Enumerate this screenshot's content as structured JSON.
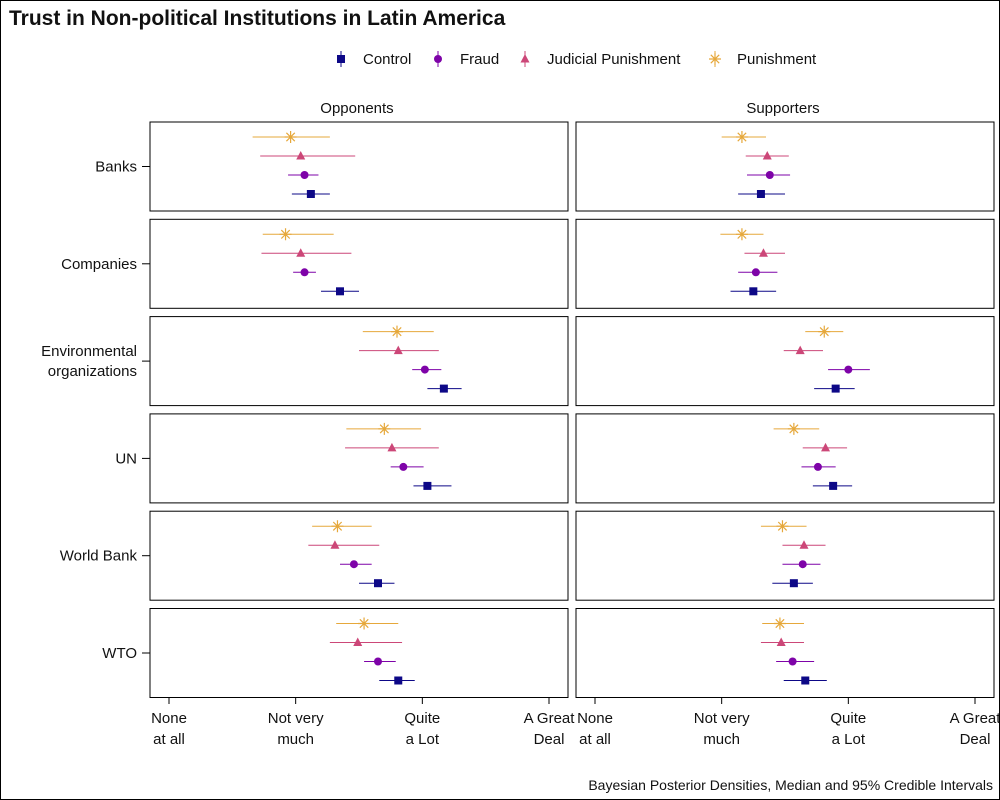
{
  "chart_data": {
    "type": "scatter",
    "title": "Trust in Non-political Institutions in Latin America",
    "caption": "Bayesian Posterior Densities, Median and 95% Credible Intervals",
    "facets": [
      "Opponents",
      "Supporters"
    ],
    "institutions": [
      "Banks",
      "Companies",
      "Environmental organizations",
      "UN",
      "World Bank",
      "WTO"
    ],
    "institution_labels": [
      [
        "Banks"
      ],
      [
        "Companies"
      ],
      [
        "Environmental",
        "organizations"
      ],
      [
        "UN"
      ],
      [
        "World Bank"
      ],
      [
        "WTO"
      ]
    ],
    "x_ticks": [
      {
        "value": 1,
        "lines": [
          "None",
          "at all"
        ]
      },
      {
        "value": 2,
        "lines": [
          "Not very",
          "much"
        ]
      },
      {
        "value": 3,
        "lines": [
          "Quite",
          "a Lot"
        ]
      },
      {
        "value": 4,
        "lines": [
          "A Great",
          "Deal"
        ]
      }
    ],
    "xlim": [
      0.85,
      4.15
    ],
    "legend_position": "top",
    "series": [
      {
        "name": "Control",
        "color": "#0d0887",
        "marker": "square"
      },
      {
        "name": "Fraud",
        "color": "#7e03a8",
        "marker": "circle"
      },
      {
        "name": "Judicial Punishment",
        "color": "#cc4778",
        "marker": "triangle"
      },
      {
        "name": "Punishment",
        "color": "#e6a83b",
        "marker": "asterisk"
      }
    ],
    "data": {
      "Opponents": {
        "Banks": {
          "Control": [
            2.12,
            1.97,
            2.27
          ],
          "Fraud": [
            2.07,
            1.94,
            2.18
          ],
          "Judicial Punishment": [
            2.04,
            1.72,
            2.47
          ],
          "Punishment": [
            1.96,
            1.66,
            2.27
          ]
        },
        "Companies": {
          "Control": [
            2.35,
            2.2,
            2.5
          ],
          "Fraud": [
            2.07,
            1.98,
            2.16
          ],
          "Judicial Punishment": [
            2.04,
            1.73,
            2.44
          ],
          "Punishment": [
            1.92,
            1.74,
            2.3
          ]
        },
        "Environmental organizations": {
          "Control": [
            3.17,
            3.04,
            3.31
          ],
          "Fraud": [
            3.02,
            2.92,
            3.15
          ],
          "Judicial Punishment": [
            2.81,
            2.5,
            3.13
          ],
          "Punishment": [
            2.8,
            2.53,
            3.09
          ]
        },
        "UN": {
          "Control": [
            3.04,
            2.93,
            3.23
          ],
          "Fraud": [
            2.85,
            2.75,
            3.01
          ],
          "Judicial Punishment": [
            2.76,
            2.39,
            3.13
          ],
          "Punishment": [
            2.7,
            2.4,
            2.99
          ]
        },
        "World Bank": {
          "Control": [
            2.65,
            2.5,
            2.78
          ],
          "Fraud": [
            2.46,
            2.35,
            2.6
          ],
          "Judicial Punishment": [
            2.31,
            2.1,
            2.66
          ],
          "Punishment": [
            2.33,
            2.13,
            2.6
          ]
        },
        "WTO": {
          "Control": [
            2.81,
            2.66,
            2.94
          ],
          "Fraud": [
            2.65,
            2.54,
            2.79
          ],
          "Judicial Punishment": [
            2.49,
            2.27,
            2.84
          ],
          "Punishment": [
            2.54,
            2.32,
            2.81
          ]
        }
      },
      "Supporters": {
        "Banks": {
          "Control": [
            2.31,
            2.13,
            2.5
          ],
          "Fraud": [
            2.38,
            2.2,
            2.54
          ],
          "Judicial Punishment": [
            2.36,
            2.19,
            2.53
          ],
          "Punishment": [
            2.16,
            2.0,
            2.35
          ]
        },
        "Companies": {
          "Control": [
            2.25,
            2.07,
            2.43
          ],
          "Fraud": [
            2.27,
            2.13,
            2.44
          ],
          "Judicial Punishment": [
            2.33,
            2.18,
            2.5
          ],
          "Punishment": [
            2.16,
            1.99,
            2.33
          ]
        },
        "Environmental organizations": {
          "Control": [
            2.9,
            2.73,
            3.05
          ],
          "Fraud": [
            3.0,
            2.84,
            3.17
          ],
          "Judicial Punishment": [
            2.62,
            2.49,
            2.8
          ],
          "Punishment": [
            2.81,
            2.66,
            2.96
          ]
        },
        "UN": {
          "Control": [
            2.88,
            2.72,
            3.03
          ],
          "Fraud": [
            2.76,
            2.63,
            2.9
          ],
          "Judicial Punishment": [
            2.82,
            2.64,
            2.99
          ],
          "Punishment": [
            2.57,
            2.41,
            2.77
          ]
        },
        "World Bank": {
          "Control": [
            2.57,
            2.4,
            2.72
          ],
          "Fraud": [
            2.64,
            2.48,
            2.78
          ],
          "Judicial Punishment": [
            2.65,
            2.48,
            2.82
          ],
          "Punishment": [
            2.48,
            2.31,
            2.67
          ]
        },
        "WTO": {
          "Control": [
            2.66,
            2.49,
            2.83
          ],
          "Fraud": [
            2.56,
            2.43,
            2.73
          ],
          "Judicial Punishment": [
            2.47,
            2.31,
            2.65
          ],
          "Punishment": [
            2.46,
            2.32,
            2.65
          ]
        }
      }
    }
  }
}
